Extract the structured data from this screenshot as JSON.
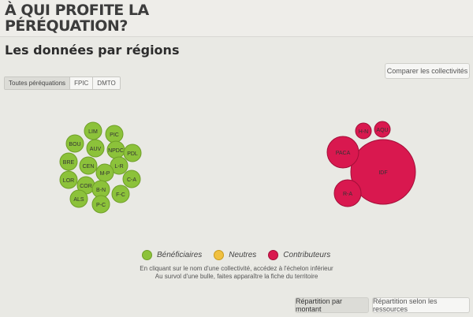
{
  "header": {
    "title": "À QUI PROFITE LA PÉRÉQUATION?"
  },
  "section_title": "Les données par régions",
  "compare_button": "Comparer les collectivités",
  "tabs": [
    {
      "label": "Toutes péréquations",
      "active": true
    },
    {
      "label": "FPIC",
      "active": false
    },
    {
      "label": "DMTO",
      "active": false
    }
  ],
  "colors": {
    "beneficiaires": "#8cc23a",
    "neutres": "#f0c040",
    "contributeurs": "#d9184f"
  },
  "bubbles": {
    "beneficiaires": [
      "LIM",
      "PIC",
      "BOU",
      "AUV",
      "NPDC",
      "PDL",
      "BRE",
      "CEN",
      "L-R",
      "M-P",
      "C-A",
      "LOR",
      "COR",
      "B-N",
      "F-C",
      "ALS",
      "P-C"
    ],
    "contributeurs": [
      "H-N",
      "AQU",
      "PACA",
      "IDF",
      "R-A"
    ]
  },
  "legend": [
    {
      "label": "Bénéficiaires",
      "color": "#8cc23a"
    },
    {
      "label": "Neutres",
      "color": "#f0c040"
    },
    {
      "label": "Contributeurs",
      "color": "#d9184f"
    }
  ],
  "help_lines": [
    "En cliquant sur le nom d'une collectivité, accédez à l'échelon inférieur",
    "Au survol d'une bulle, faites apparaître la fiche du territoire"
  ],
  "bottom_buttons": {
    "amount": "Répartition par montant",
    "resources": "Répartition selon les ressources"
  }
}
